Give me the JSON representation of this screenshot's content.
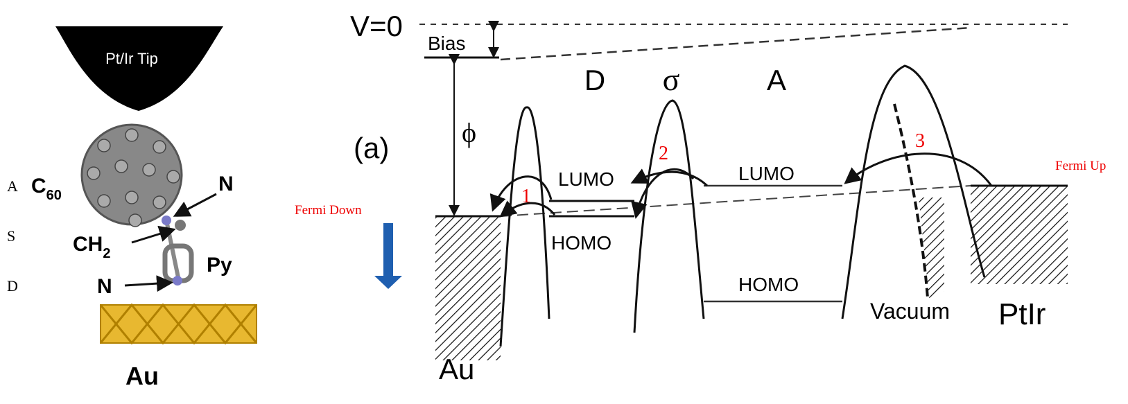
{
  "left_panel": {
    "tip_label": "Pt/Ir Tip",
    "side_labels": [
      "A",
      "S",
      "D"
    ],
    "molecule_labels": {
      "c60": {
        "base": "C",
        "sub": "60"
      },
      "n_top": "N",
      "ch2": {
        "base": "CH",
        "sub": "2"
      },
      "py": "Py",
      "n_bottom": "N",
      "substrate": "Au"
    }
  },
  "energy_diagram": {
    "vacuum_level": "V=0",
    "bias": "Bias",
    "work_function": "ϕ",
    "panel_label": "(a)",
    "regions": [
      "D",
      "σ",
      "A"
    ],
    "orbitals": {
      "donor_lumo": "LUMO",
      "donor_homo": "HOMO",
      "acceptor_lumo": "LUMO",
      "acceptor_homo": "HOMO"
    },
    "steps": [
      "1",
      "2",
      "3"
    ],
    "fermi_up": "Fermi Up",
    "fermi_down": "Fermi Down",
    "vacuum": "Vacuum",
    "tip": "PtIr",
    "substrate": "Au"
  }
}
